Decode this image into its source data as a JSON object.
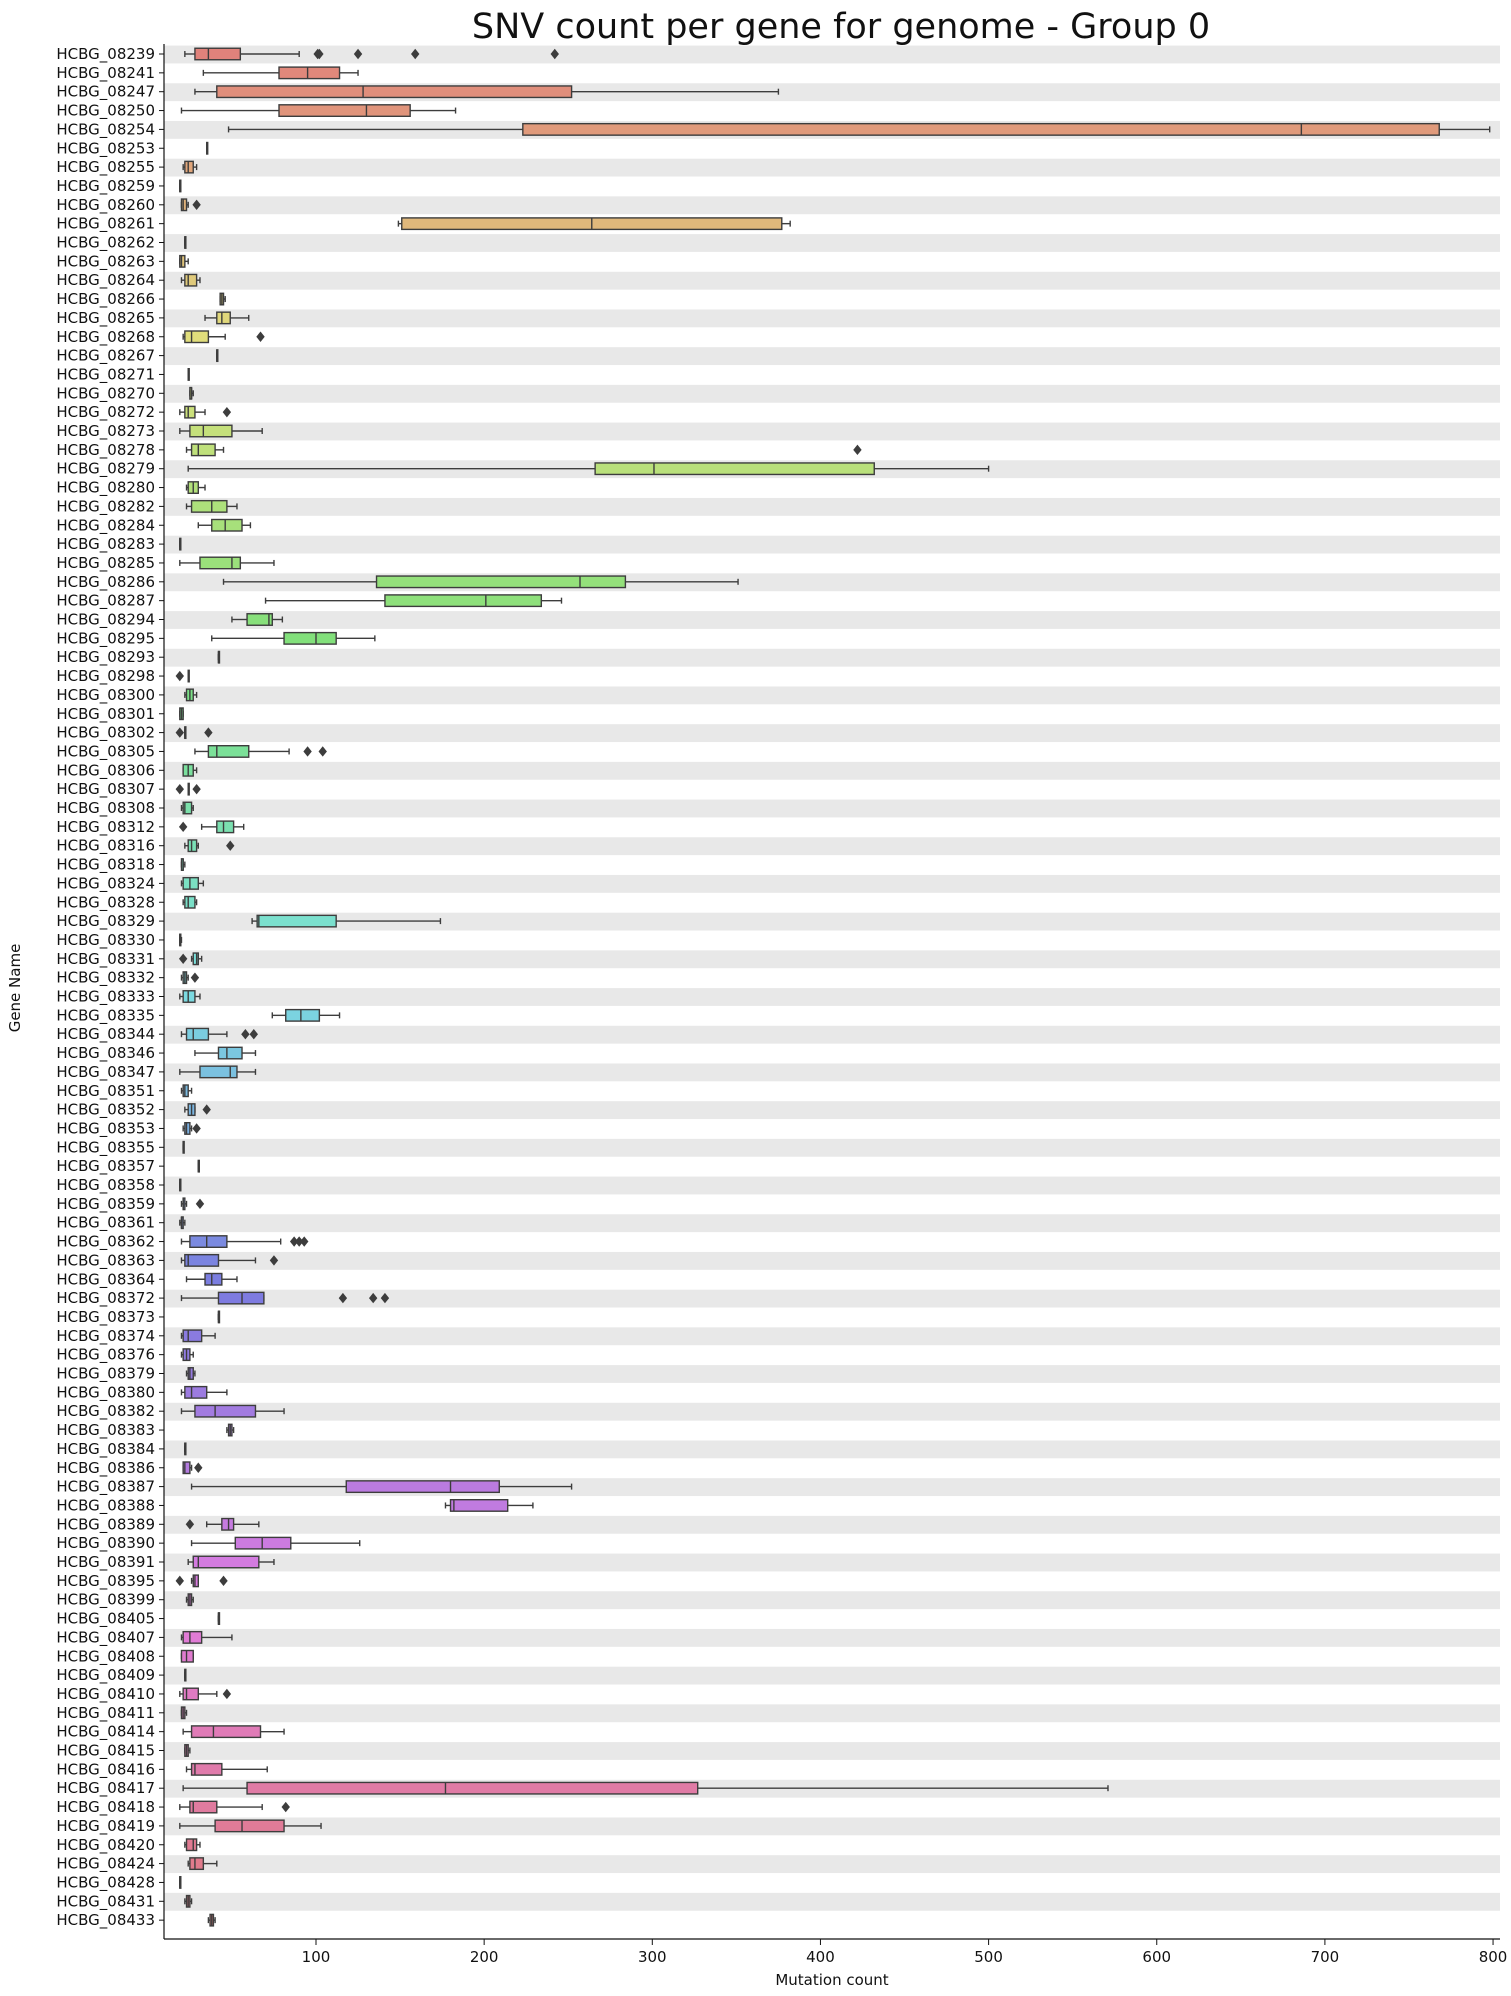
{
  "chart_data": {
    "type": "box",
    "orientation": "horizontal",
    "title": "SNV count per gene for genome - Group 0",
    "xlabel": "Mutation count",
    "ylabel": "Gene Name",
    "xlim": [
      10,
      808
    ],
    "xticks": [
      100,
      200,
      300,
      400,
      500,
      600,
      700,
      800
    ],
    "grid": false,
    "row_banding": true,
    "band_color": "#e8e8e8",
    "categories": [
      "HCBG_08239",
      "HCBG_08241",
      "HCBG_08247",
      "HCBG_08250",
      "HCBG_08254",
      "HCBG_08253",
      "HCBG_08255",
      "HCBG_08259",
      "HCBG_08260",
      "HCBG_08261",
      "HCBG_08262",
      "HCBG_08263",
      "HCBG_08264",
      "HCBG_08266",
      "HCBG_08265",
      "HCBG_08268",
      "HCBG_08267",
      "HCBG_08271",
      "HCBG_08270",
      "HCBG_08272",
      "HCBG_08273",
      "HCBG_08278",
      "HCBG_08279",
      "HCBG_08280",
      "HCBG_08282",
      "HCBG_08284",
      "HCBG_08283",
      "HCBG_08285",
      "HCBG_08286",
      "HCBG_08287",
      "HCBG_08294",
      "HCBG_08295",
      "HCBG_08293",
      "HCBG_08298",
      "HCBG_08300",
      "HCBG_08301",
      "HCBG_08302",
      "HCBG_08305",
      "HCBG_08306",
      "HCBG_08307",
      "HCBG_08308",
      "HCBG_08312",
      "HCBG_08316",
      "HCBG_08318",
      "HCBG_08324",
      "HCBG_08328",
      "HCBG_08329",
      "HCBG_08330",
      "HCBG_08331",
      "HCBG_08332",
      "HCBG_08333",
      "HCBG_08335",
      "HCBG_08344",
      "HCBG_08346",
      "HCBG_08347",
      "HCBG_08351",
      "HCBG_08352",
      "HCBG_08353",
      "HCBG_08355",
      "HCBG_08357",
      "HCBG_08358",
      "HCBG_08359",
      "HCBG_08361",
      "HCBG_08362",
      "HCBG_08363",
      "HCBG_08364",
      "HCBG_08372",
      "HCBG_08373",
      "HCBG_08374",
      "HCBG_08376",
      "HCBG_08379",
      "HCBG_08380",
      "HCBG_08382",
      "HCBG_08383",
      "HCBG_08384",
      "HCBG_08386",
      "HCBG_08387",
      "HCBG_08388",
      "HCBG_08389",
      "HCBG_08390",
      "HCBG_08391",
      "HCBG_08395",
      "HCBG_08399",
      "HCBG_08405",
      "HCBG_08407",
      "HCBG_08408",
      "HCBG_08409",
      "HCBG_08410",
      "HCBG_08411",
      "HCBG_08414",
      "HCBG_08415",
      "HCBG_08416",
      "HCBG_08417",
      "HCBG_08418",
      "HCBG_08419",
      "HCBG_08420",
      "HCBG_08424",
      "HCBG_08428",
      "HCBG_08431",
      "HCBG_08433"
    ],
    "boxes": [
      {
        "wmin": 22,
        "q1": 28,
        "med": 36,
        "q3": 55,
        "wmax": 90,
        "out": [
          101,
          102,
          125,
          159,
          242
        ]
      },
      {
        "wmin": 33,
        "q1": 78,
        "med": 95,
        "q3": 114,
        "wmax": 125,
        "out": []
      },
      {
        "wmin": 28,
        "q1": 41,
        "med": 128,
        "q3": 252,
        "wmax": 375,
        "out": []
      },
      {
        "wmin": 20,
        "q1": 78,
        "med": 130,
        "q3": 156,
        "wmax": 183,
        "out": []
      },
      {
        "wmin": 48,
        "q1": 223,
        "med": 686,
        "q3": 768,
        "wmax": 798,
        "out": []
      },
      {
        "wmin": 35,
        "q1": 35,
        "med": 35,
        "q3": 35,
        "wmax": 35,
        "out": []
      },
      {
        "wmin": 21,
        "q1": 22,
        "med": 24,
        "q3": 27,
        "wmax": 29,
        "out": []
      },
      {
        "wmin": 19,
        "q1": 19,
        "med": 19,
        "q3": 19,
        "wmax": 19,
        "out": []
      },
      {
        "wmin": 20,
        "q1": 20,
        "med": 21,
        "q3": 23,
        "wmax": 24,
        "out": [
          29
        ]
      },
      {
        "wmin": 149,
        "q1": 151,
        "med": 264,
        "q3": 377,
        "wmax": 382,
        "out": []
      },
      {
        "wmin": 22,
        "q1": 22,
        "med": 22,
        "q3": 22,
        "wmax": 22,
        "out": []
      },
      {
        "wmin": 19,
        "q1": 19,
        "med": 20,
        "q3": 22,
        "wmax": 24,
        "out": []
      },
      {
        "wmin": 20,
        "q1": 22,
        "med": 24,
        "q3": 29,
        "wmax": 31,
        "out": []
      },
      {
        "wmin": 43,
        "q1": 43,
        "med": 44,
        "q3": 45,
        "wmax": 46,
        "out": []
      },
      {
        "wmin": 34,
        "q1": 41,
        "med": 44,
        "q3": 49,
        "wmax": 60,
        "out": []
      },
      {
        "wmin": 21,
        "q1": 22,
        "med": 26,
        "q3": 36,
        "wmax": 46,
        "out": [
          67
        ]
      },
      {
        "wmin": 41,
        "q1": 41,
        "med": 41,
        "q3": 41,
        "wmax": 41,
        "out": []
      },
      {
        "wmin": 24,
        "q1": 24,
        "med": 24,
        "q3": 24,
        "wmax": 24,
        "out": []
      },
      {
        "wmin": 25,
        "q1": 25,
        "med": 26,
        "q3": 26,
        "wmax": 27,
        "out": []
      },
      {
        "wmin": 19,
        "q1": 22,
        "med": 24,
        "q3": 28,
        "wmax": 34,
        "out": [
          47
        ]
      },
      {
        "wmin": 19,
        "q1": 25,
        "med": 33,
        "q3": 50,
        "wmax": 68,
        "out": []
      },
      {
        "wmin": 23,
        "q1": 26,
        "med": 30,
        "q3": 40,
        "wmax": 45,
        "out": [
          422
        ]
      },
      {
        "wmin": 24,
        "q1": 266,
        "med": 301,
        "q3": 432,
        "wmax": 500,
        "out": []
      },
      {
        "wmin": 23,
        "q1": 24,
        "med": 27,
        "q3": 30,
        "wmax": 34,
        "out": []
      },
      {
        "wmin": 23,
        "q1": 26,
        "med": 38,
        "q3": 47,
        "wmax": 53,
        "out": []
      },
      {
        "wmin": 30,
        "q1": 38,
        "med": 46,
        "q3": 56,
        "wmax": 61,
        "out": []
      },
      {
        "wmin": 19,
        "q1": 19,
        "med": 19,
        "q3": 19,
        "wmax": 19,
        "out": []
      },
      {
        "wmin": 19,
        "q1": 31,
        "med": 50,
        "q3": 55,
        "wmax": 75,
        "out": []
      },
      {
        "wmin": 45,
        "q1": 136,
        "med": 257,
        "q3": 284,
        "wmax": 351,
        "out": []
      },
      {
        "wmin": 70,
        "q1": 141,
        "med": 201,
        "q3": 234,
        "wmax": 246,
        "out": []
      },
      {
        "wmin": 50,
        "q1": 59,
        "med": 72,
        "q3": 74,
        "wmax": 80,
        "out": []
      },
      {
        "wmin": 38,
        "q1": 81,
        "med": 100,
        "q3": 112,
        "wmax": 135,
        "out": []
      },
      {
        "wmin": 42,
        "q1": 42,
        "med": 42,
        "q3": 42,
        "wmax": 42,
        "out": []
      },
      {
        "wmin": 24,
        "q1": 24,
        "med": 24,
        "q3": 24,
        "wmax": 24,
        "out": [
          19
        ]
      },
      {
        "wmin": 22,
        "q1": 23,
        "med": 25,
        "q3": 27,
        "wmax": 29,
        "out": []
      },
      {
        "wmin": 19,
        "q1": 19,
        "med": 20,
        "q3": 21,
        "wmax": 21,
        "out": []
      },
      {
        "wmin": 22,
        "q1": 22,
        "med": 22,
        "q3": 22,
        "wmax": 22,
        "out": [
          19,
          36
        ]
      },
      {
        "wmin": 28,
        "q1": 36,
        "med": 41,
        "q3": 60,
        "wmax": 84,
        "out": [
          95,
          104
        ]
      },
      {
        "wmin": 21,
        "q1": 21,
        "med": 24,
        "q3": 27,
        "wmax": 29,
        "out": []
      },
      {
        "wmin": 24,
        "q1": 24,
        "med": 24,
        "q3": 24,
        "wmax": 24,
        "out": [
          19,
          29
        ]
      },
      {
        "wmin": 20,
        "q1": 21,
        "med": 22,
        "q3": 26,
        "wmax": 27,
        "out": []
      },
      {
        "wmin": 32,
        "q1": 41,
        "med": 45,
        "q3": 51,
        "wmax": 57,
        "out": [
          21
        ]
      },
      {
        "wmin": 22,
        "q1": 24,
        "med": 26,
        "q3": 29,
        "wmax": 30,
        "out": [
          49
        ]
      },
      {
        "wmin": 20,
        "q1": 20,
        "med": 21,
        "q3": 21,
        "wmax": 22,
        "out": []
      },
      {
        "wmin": 20,
        "q1": 21,
        "med": 25,
        "q3": 30,
        "wmax": 33,
        "out": []
      },
      {
        "wmin": 21,
        "q1": 22,
        "med": 24,
        "q3": 28,
        "wmax": 29,
        "out": []
      },
      {
        "wmin": 62,
        "q1": 65,
        "med": 66,
        "q3": 112,
        "wmax": 174,
        "out": []
      },
      {
        "wmin": 19,
        "q1": 19,
        "med": 19,
        "q3": 19,
        "wmax": 20,
        "out": []
      },
      {
        "wmin": 26,
        "q1": 27,
        "med": 29,
        "q3": 30,
        "wmax": 32,
        "out": [
          21
        ]
      },
      {
        "wmin": 20,
        "q1": 21,
        "med": 22,
        "q3": 23,
        "wmax": 24,
        "out": [
          28
        ]
      },
      {
        "wmin": 19,
        "q1": 21,
        "med": 24,
        "q3": 28,
        "wmax": 31,
        "out": []
      },
      {
        "wmin": 74,
        "q1": 82,
        "med": 91,
        "q3": 102,
        "wmax": 114,
        "out": []
      },
      {
        "wmin": 20,
        "q1": 23,
        "med": 27,
        "q3": 36,
        "wmax": 47,
        "out": [
          58,
          63
        ]
      },
      {
        "wmin": 28,
        "q1": 42,
        "med": 47,
        "q3": 56,
        "wmax": 64,
        "out": []
      },
      {
        "wmin": 19,
        "q1": 31,
        "med": 49,
        "q3": 53,
        "wmax": 64,
        "out": []
      },
      {
        "wmin": 20,
        "q1": 21,
        "med": 22,
        "q3": 24,
        "wmax": 26,
        "out": []
      },
      {
        "wmin": 22,
        "q1": 24,
        "med": 26,
        "q3": 28,
        "wmax": 28,
        "out": [
          35
        ]
      },
      {
        "wmin": 21,
        "q1": 22,
        "med": 23,
        "q3": 25,
        "wmax": 26,
        "out": [
          29
        ]
      },
      {
        "wmin": 21,
        "q1": 21,
        "med": 21,
        "q3": 21,
        "wmax": 21,
        "out": []
      },
      {
        "wmin": 30,
        "q1": 30,
        "med": 30,
        "q3": 30,
        "wmax": 30,
        "out": []
      },
      {
        "wmin": 19,
        "q1": 19,
        "med": 19,
        "q3": 19,
        "wmax": 19,
        "out": []
      },
      {
        "wmin": 20,
        "q1": 21,
        "med": 21,
        "q3": 22,
        "wmax": 23,
        "out": [
          31
        ]
      },
      {
        "wmin": 19,
        "q1": 20,
        "med": 20,
        "q3": 21,
        "wmax": 22,
        "out": []
      },
      {
        "wmin": 20,
        "q1": 25,
        "med": 35,
        "q3": 47,
        "wmax": 79,
        "out": [
          87,
          90,
          93
        ]
      },
      {
        "wmin": 20,
        "q1": 22,
        "med": 24,
        "q3": 42,
        "wmax": 64,
        "out": [
          75
        ]
      },
      {
        "wmin": 23,
        "q1": 34,
        "med": 38,
        "q3": 44,
        "wmax": 53,
        "out": []
      },
      {
        "wmin": 20,
        "q1": 42,
        "med": 56,
        "q3": 69,
        "wmax": 69,
        "out": [
          116,
          134,
          141
        ]
      },
      {
        "wmin": 42,
        "q1": 42,
        "med": 42,
        "q3": 42,
        "wmax": 42,
        "out": []
      },
      {
        "wmin": 20,
        "q1": 21,
        "med": 24,
        "q3": 32,
        "wmax": 40,
        "out": []
      },
      {
        "wmin": 20,
        "q1": 21,
        "med": 23,
        "q3": 25,
        "wmax": 27,
        "out": []
      },
      {
        "wmin": 23,
        "q1": 24,
        "med": 25,
        "q3": 27,
        "wmax": 28,
        "out": []
      },
      {
        "wmin": 20,
        "q1": 22,
        "med": 26,
        "q3": 35,
        "wmax": 47,
        "out": []
      },
      {
        "wmin": 20,
        "q1": 28,
        "med": 40,
        "q3": 64,
        "wmax": 81,
        "out": []
      },
      {
        "wmin": 47,
        "q1": 48,
        "med": 49,
        "q3": 50,
        "wmax": 51,
        "out": []
      },
      {
        "wmin": 22,
        "q1": 22,
        "med": 22,
        "q3": 22,
        "wmax": 22,
        "out": []
      },
      {
        "wmin": 21,
        "q1": 21,
        "med": 22,
        "q3": 25,
        "wmax": 26,
        "out": [
          30
        ]
      },
      {
        "wmin": 26,
        "q1": 118,
        "med": 180,
        "q3": 209,
        "wmax": 252,
        "out": []
      },
      {
        "wmin": 177,
        "q1": 180,
        "med": 182,
        "q3": 214,
        "wmax": 229,
        "out": []
      },
      {
        "wmin": 35,
        "q1": 44,
        "med": 48,
        "q3": 51,
        "wmax": 66,
        "out": [
          25
        ]
      },
      {
        "wmin": 26,
        "q1": 52,
        "med": 68,
        "q3": 85,
        "wmax": 126,
        "out": []
      },
      {
        "wmin": 24,
        "q1": 27,
        "med": 30,
        "q3": 66,
        "wmax": 75,
        "out": []
      },
      {
        "wmin": 26,
        "q1": 27,
        "med": 28,
        "q3": 30,
        "wmax": 30,
        "out": [
          19,
          45
        ]
      },
      {
        "wmin": 23,
        "q1": 24,
        "med": 25,
        "q3": 26,
        "wmax": 27,
        "out": []
      },
      {
        "wmin": 42,
        "q1": 42,
        "med": 42,
        "q3": 42,
        "wmax": 42,
        "out": []
      },
      {
        "wmin": 20,
        "q1": 21,
        "med": 25,
        "q3": 32,
        "wmax": 50,
        "out": []
      },
      {
        "wmin": 20,
        "q1": 20,
        "med": 23,
        "q3": 27,
        "wmax": 27,
        "out": []
      },
      {
        "wmin": 22,
        "q1": 22,
        "med": 22,
        "q3": 22,
        "wmax": 22,
        "out": []
      },
      {
        "wmin": 19,
        "q1": 21,
        "med": 23,
        "q3": 30,
        "wmax": 41,
        "out": [
          47
        ]
      },
      {
        "wmin": 20,
        "q1": 20,
        "med": 21,
        "q3": 22,
        "wmax": 23,
        "out": []
      },
      {
        "wmin": 21,
        "q1": 26,
        "med": 39,
        "q3": 67,
        "wmax": 81,
        "out": []
      },
      {
        "wmin": 22,
        "q1": 22,
        "med": 23,
        "q3": 24,
        "wmax": 25,
        "out": []
      },
      {
        "wmin": 23,
        "q1": 26,
        "med": 28,
        "q3": 44,
        "wmax": 71,
        "out": []
      },
      {
        "wmin": 21,
        "q1": 59,
        "med": 177,
        "q3": 327,
        "wmax": 571,
        "out": []
      },
      {
        "wmin": 19,
        "q1": 25,
        "med": 27,
        "q3": 41,
        "wmax": 68,
        "out": [
          82
        ]
      },
      {
        "wmin": 19,
        "q1": 40,
        "med": 56,
        "q3": 81,
        "wmax": 103,
        "out": []
      },
      {
        "wmin": 22,
        "q1": 23,
        "med": 27,
        "q3": 29,
        "wmax": 31,
        "out": []
      },
      {
        "wmin": 24,
        "q1": 25,
        "med": 28,
        "q3": 33,
        "wmax": 41,
        "out": []
      },
      {
        "wmin": 19,
        "q1": 19,
        "med": 19,
        "q3": 19,
        "wmax": 19,
        "out": []
      },
      {
        "wmin": 22,
        "q1": 23,
        "med": 24,
        "q3": 25,
        "wmax": 26,
        "out": []
      },
      {
        "wmin": 36,
        "q1": 37,
        "med": 38,
        "q3": 39,
        "wmax": 40,
        "out": []
      }
    ]
  }
}
